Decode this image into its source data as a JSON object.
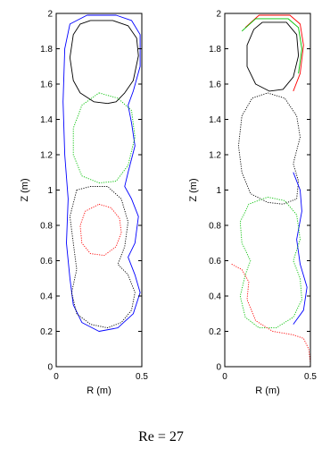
{
  "caption": "Re = 27",
  "colors": {
    "black": "#000000",
    "blue": "#0000ff",
    "green": "#00c000",
    "red": "#ff0000"
  },
  "chart_data": [
    {
      "type": "line",
      "xlabel": "R (m)",
      "ylabel": "Z (m)",
      "xlim": [
        0,
        0.5
      ],
      "ylim": [
        0,
        2
      ],
      "x_ticks": [
        "0",
        "0.5"
      ],
      "y_ticks": [
        "0",
        "0.2",
        "0.4",
        "0.6",
        "0.8",
        "1",
        "1.2",
        "1.4",
        "1.6",
        "1.8",
        "2"
      ],
      "series": [
        {
          "color": "black",
          "style": "solid",
          "points": [
            [
              0.2,
              1.96
            ],
            [
              0.33,
              1.96
            ],
            [
              0.42,
              1.93
            ],
            [
              0.47,
              1.86
            ],
            [
              0.48,
              1.76
            ],
            [
              0.45,
              1.62
            ],
            [
              0.4,
              1.55
            ],
            [
              0.35,
              1.5
            ],
            [
              0.3,
              1.49
            ],
            [
              0.22,
              1.5
            ],
            [
              0.14,
              1.55
            ],
            [
              0.1,
              1.62
            ],
            [
              0.08,
              1.75
            ],
            [
              0.1,
              1.88
            ],
            [
              0.14,
              1.94
            ],
            [
              0.2,
              1.96
            ]
          ]
        },
        {
          "color": "blue",
          "style": "solid",
          "points": [
            [
              0.18,
              1.99
            ],
            [
              0.35,
              1.99
            ],
            [
              0.44,
              1.96
            ],
            [
              0.49,
              1.88
            ],
            [
              0.49,
              1.7
            ],
            [
              0.45,
              1.56
            ],
            [
              0.42,
              1.48
            ],
            [
              0.44,
              1.38
            ],
            [
              0.46,
              1.25
            ],
            [
              0.42,
              1.1
            ],
            [
              0.4,
              1.02
            ],
            [
              0.44,
              0.95
            ],
            [
              0.48,
              0.85
            ],
            [
              0.46,
              0.7
            ],
            [
              0.42,
              0.62
            ],
            [
              0.46,
              0.52
            ],
            [
              0.49,
              0.42
            ],
            [
              0.45,
              0.3
            ],
            [
              0.36,
              0.22
            ],
            [
              0.25,
              0.2
            ],
            [
              0.15,
              0.25
            ],
            [
              0.1,
              0.35
            ],
            [
              0.08,
              0.5
            ],
            [
              0.06,
              0.7
            ],
            [
              0.07,
              0.95
            ],
            [
              0.05,
              1.2
            ],
            [
              0.04,
              1.5
            ],
            [
              0.05,
              1.8
            ],
            [
              0.08,
              1.94
            ],
            [
              0.18,
              1.99
            ]
          ]
        },
        {
          "color": "green",
          "style": "dotted",
          "points": [
            [
              0.25,
              1.55
            ],
            [
              0.36,
              1.52
            ],
            [
              0.44,
              1.45
            ],
            [
              0.46,
              1.3
            ],
            [
              0.42,
              1.14
            ],
            [
              0.35,
              1.05
            ],
            [
              0.25,
              1.04
            ],
            [
              0.15,
              1.08
            ],
            [
              0.1,
              1.2
            ],
            [
              0.1,
              1.35
            ],
            [
              0.15,
              1.48
            ],
            [
              0.25,
              1.55
            ]
          ]
        },
        {
          "color": "red",
          "style": "dotted",
          "points": [
            [
              0.25,
              0.92
            ],
            [
              0.32,
              0.9
            ],
            [
              0.37,
              0.84
            ],
            [
              0.38,
              0.76
            ],
            [
              0.35,
              0.68
            ],
            [
              0.28,
              0.63
            ],
            [
              0.2,
              0.64
            ],
            [
              0.15,
              0.7
            ],
            [
              0.14,
              0.8
            ],
            [
              0.17,
              0.88
            ],
            [
              0.25,
              0.92
            ]
          ]
        },
        {
          "color": "black",
          "style": "dotted",
          "points": [
            [
              0.12,
              1.0
            ],
            [
              0.08,
              0.85
            ],
            [
              0.1,
              0.7
            ],
            [
              0.12,
              0.55
            ],
            [
              0.09,
              0.42
            ],
            [
              0.12,
              0.3
            ],
            [
              0.2,
              0.24
            ],
            [
              0.3,
              0.22
            ],
            [
              0.38,
              0.25
            ],
            [
              0.44,
              0.32
            ],
            [
              0.46,
              0.42
            ],
            [
              0.42,
              0.52
            ],
            [
              0.36,
              0.58
            ],
            [
              0.4,
              0.68
            ],
            [
              0.42,
              0.82
            ],
            [
              0.38,
              0.95
            ],
            [
              0.3,
              1.02
            ],
            [
              0.2,
              1.02
            ],
            [
              0.12,
              1.0
            ]
          ]
        }
      ]
    },
    {
      "type": "line",
      "xlabel": "R (m)",
      "ylabel": "Z (m)",
      "xlim": [
        0,
        0.5
      ],
      "ylim": [
        0,
        2
      ],
      "x_ticks": [
        "0",
        "0.5"
      ],
      "y_ticks": [
        "0",
        "0.2",
        "0.4",
        "0.6",
        "0.8",
        "1",
        "1.2",
        "1.4",
        "1.6",
        "1.8",
        "2"
      ],
      "series": [
        {
          "color": "red",
          "style": "solid",
          "points": [
            [
              0.12,
              1.92
            ],
            [
              0.2,
              1.99
            ],
            [
              0.38,
              1.99
            ],
            [
              0.44,
              1.94
            ],
            [
              0.46,
              1.82
            ],
            [
              0.44,
              1.66
            ],
            [
              0.4,
              1.56
            ]
          ]
        },
        {
          "color": "green",
          "style": "solid",
          "points": [
            [
              0.1,
              1.9
            ],
            [
              0.18,
              1.97
            ],
            [
              0.37,
              1.97
            ],
            [
              0.43,
              1.92
            ],
            [
              0.45,
              1.8
            ],
            [
              0.43,
              1.66
            ]
          ]
        },
        {
          "color": "black",
          "style": "solid",
          "points": [
            [
              0.22,
              1.95
            ],
            [
              0.36,
              1.95
            ],
            [
              0.42,
              1.88
            ],
            [
              0.43,
              1.76
            ],
            [
              0.4,
              1.64
            ],
            [
              0.34,
              1.57
            ],
            [
              0.26,
              1.56
            ],
            [
              0.18,
              1.6
            ],
            [
              0.13,
              1.7
            ],
            [
              0.13,
              1.82
            ],
            [
              0.17,
              1.91
            ],
            [
              0.22,
              1.95
            ]
          ]
        },
        {
          "color": "black",
          "style": "dotted",
          "points": [
            [
              0.25,
              1.55
            ],
            [
              0.35,
              1.52
            ],
            [
              0.42,
              1.42
            ],
            [
              0.44,
              1.3
            ],
            [
              0.4,
              1.15
            ],
            [
              0.43,
              1.05
            ],
            [
              0.42,
              0.95
            ],
            [
              0.34,
              0.92
            ],
            [
              0.25,
              0.93
            ],
            [
              0.15,
              0.98
            ],
            [
              0.1,
              1.1
            ],
            [
              0.08,
              1.25
            ],
            [
              0.1,
              1.42
            ],
            [
              0.16,
              1.52
            ],
            [
              0.25,
              1.55
            ]
          ]
        },
        {
          "color": "blue",
          "style": "solid",
          "points": [
            [
              0.4,
              1.1
            ],
            [
              0.44,
              1.0
            ],
            [
              0.45,
              0.88
            ],
            [
              0.42,
              0.72
            ],
            [
              0.44,
              0.58
            ],
            [
              0.48,
              0.45
            ],
            [
              0.46,
              0.32
            ],
            [
              0.4,
              0.24
            ]
          ]
        },
        {
          "color": "green",
          "style": "dotted",
          "points": [
            [
              0.25,
              0.96
            ],
            [
              0.35,
              0.94
            ],
            [
              0.42,
              0.86
            ],
            [
              0.44,
              0.72
            ],
            [
              0.4,
              0.6
            ],
            [
              0.44,
              0.5
            ],
            [
              0.45,
              0.38
            ],
            [
              0.4,
              0.28
            ],
            [
              0.3,
              0.22
            ],
            [
              0.2,
              0.22
            ],
            [
              0.12,
              0.28
            ],
            [
              0.09,
              0.4
            ],
            [
              0.12,
              0.52
            ],
            [
              0.15,
              0.6
            ],
            [
              0.1,
              0.7
            ],
            [
              0.09,
              0.82
            ],
            [
              0.14,
              0.92
            ],
            [
              0.25,
              0.96
            ]
          ]
        },
        {
          "color": "red",
          "style": "dotted",
          "points": [
            [
              0.04,
              0.58
            ],
            [
              0.1,
              0.55
            ],
            [
              0.14,
              0.48
            ],
            [
              0.13,
              0.38
            ],
            [
              0.18,
              0.26
            ],
            [
              0.28,
              0.2
            ],
            [
              0.4,
              0.18
            ],
            [
              0.46,
              0.16
            ],
            [
              0.49,
              0.1
            ],
            [
              0.5,
              0.02
            ]
          ]
        }
      ]
    }
  ]
}
